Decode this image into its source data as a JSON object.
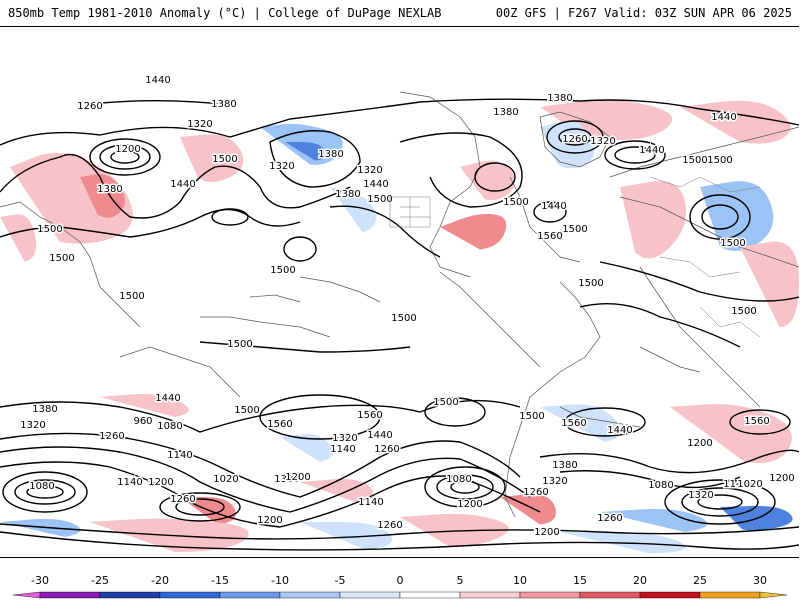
{
  "header": {
    "left": "850mb Temp 1981-2010 Anomaly (°C) | College of DuPage NEXLAB",
    "right": "00Z GFS | F267 Valid: 03Z SUN APR 06 2025"
  },
  "colors": {
    "warm_light": "#f7c3c8",
    "warm_mid": "#ef8a8f",
    "warm_strong": "#e0505a",
    "cool_light": "#cfe2fb",
    "cool_mid": "#9cc3f5",
    "cool_strong": "#4f82df",
    "contour": "#000000",
    "coastline": "#555555"
  },
  "contour_labels": [
    "1440",
    "1380",
    "1260",
    "1380",
    "1320",
    "1200",
    "1500",
    "1380",
    "1440",
    "1320",
    "1380",
    "1320",
    "1440",
    "1500",
    "1380",
    "1380",
    "1260",
    "1320",
    "1440",
    "1440",
    "1500",
    "1500",
    "1500",
    "1500",
    "1440",
    "1560",
    "1500",
    "1500",
    "1500",
    "1500",
    "1500",
    "1500",
    "1500",
    "1500",
    "1500",
    "1440",
    "1380",
    "1320",
    "1260",
    "1080",
    "960",
    "1140",
    "1020",
    "1080",
    "1140",
    "1200",
    "1260",
    "1500",
    "1560",
    "1380",
    "1200",
    "1560",
    "1320",
    "1440",
    "1140",
    "1260",
    "1500",
    "1080",
    "1200",
    "1140",
    "1200",
    "1260",
    "1380",
    "1320",
    "1260",
    "1500",
    "1560",
    "1440",
    "1200",
    "1560",
    "1080",
    "1140",
    "1020",
    "1200",
    "1320",
    "1200",
    "1260"
  ],
  "colorbar": {
    "ticks": [
      "-30",
      "-25",
      "-20",
      "-15",
      "-10",
      "-5",
      "0",
      "5",
      "10",
      "15",
      "20",
      "25",
      "30"
    ],
    "colors": [
      "#e35fe0",
      "#8a1cb5",
      "#1f3ea8",
      "#2f68d6",
      "#6c9ae8",
      "#a9c9f4",
      "#d8e7fb",
      "#ffffff",
      "#f9cdd2",
      "#f29aa0",
      "#e65a62",
      "#c0141e",
      "#f0a020",
      "#f0c040"
    ]
  }
}
